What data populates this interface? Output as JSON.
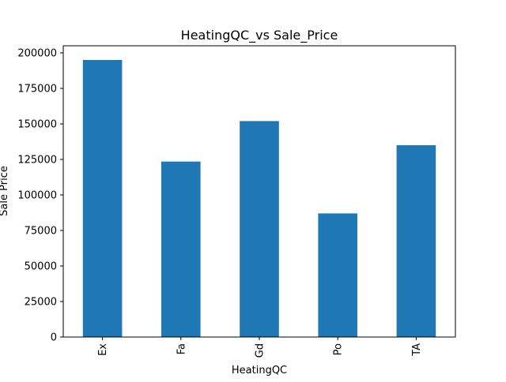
{
  "chart_data": {
    "type": "bar",
    "title": "HeatingQC_vs Sale_Price",
    "xlabel": "HeatingQC",
    "ylabel": "Sale Price",
    "categories": [
      "Ex",
      "Fa",
      "Gd",
      "Po",
      "TA"
    ],
    "values": [
      195000,
      123500,
      152000,
      87000,
      135000
    ],
    "ylim": [
      0,
      205000
    ],
    "yticks": [
      0,
      25000,
      50000,
      75000,
      100000,
      125000,
      150000,
      175000,
      200000
    ],
    "bar_color": "#1f77b4",
    "grid": false,
    "legend": "none"
  }
}
